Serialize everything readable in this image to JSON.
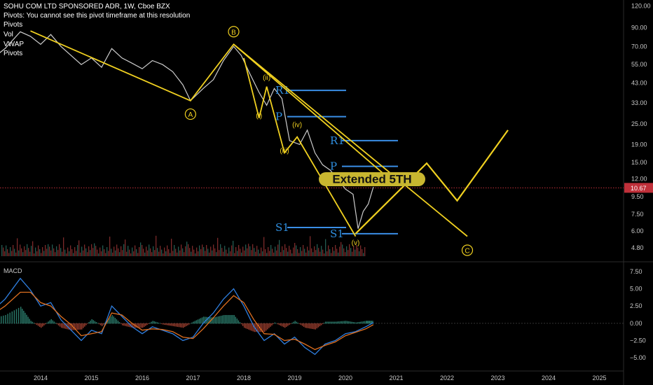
{
  "header": {
    "title": "SOHU COM LTD SPONSORED ADR, 1W, Cboe BZX",
    "message": "Pivots: You cannot see this pivot timeframe at this resolution",
    "indicators": [
      "Pivots",
      "Vol",
      "VWAP",
      "Pivots"
    ]
  },
  "macd_label": "MACD",
  "price_label": "10.67",
  "chart_data": [
    {
      "type": "line",
      "scale": "log",
      "x_axis": [
        "2014",
        "2015",
        "2016",
        "2017",
        "2018",
        "2019",
        "2020",
        "2021",
        "2022",
        "2023",
        "2024",
        "2025"
      ],
      "y_ticks": [
        "120.00",
        "90.00",
        "70.00",
        "55.00",
        "43.00",
        "33.00",
        "25.00",
        "19.00",
        "15.00",
        "12.00",
        "10.67",
        "9.50",
        "7.50",
        "6.00",
        "4.80"
      ],
      "ylim": [
        4.3,
        125
      ],
      "current_price": 10.67,
      "series": [
        {
          "color": "#cccccc",
          "x": [
            2013.0,
            2013.3,
            2013.6,
            2013.8,
            2014.0,
            2014.2,
            2014.4,
            2014.6,
            2014.8,
            2015.0,
            2015.2,
            2015.4,
            2015.6,
            2015.8,
            2016.0,
            2016.2,
            2016.4,
            2016.6,
            2016.8,
            2016.95,
            2017.2,
            2017.4,
            2017.6,
            2017.8,
            2017.95,
            2018.1,
            2018.3,
            2018.45,
            2018.6,
            2018.75,
            2018.9,
            2019.1,
            2019.25,
            2019.4,
            2019.55,
            2019.7,
            2019.85,
            2020.0,
            2020.15,
            2020.25,
            2020.35,
            2020.45,
            2020.55
          ],
          "values": [
            58,
            68,
            85,
            80,
            72,
            82,
            70,
            62,
            55,
            60,
            53,
            68,
            60,
            56,
            52,
            58,
            55,
            50,
            42,
            34,
            40,
            45,
            58,
            70,
            62,
            50,
            38,
            32,
            40,
            35,
            20,
            19,
            23,
            17,
            14.5,
            13.5,
            12,
            10.5,
            9.8,
            6.2,
            7.8,
            8.6,
            10.8
          ]
        }
      ],
      "annotations": {
        "elliott_points": [
          {
            "label": "B",
            "x": 2017.8,
            "y": 72
          },
          {
            "label": "A",
            "x": 2016.95,
            "y": 33
          },
          {
            "label": "C",
            "x": 2022.4,
            "y": 5.4
          }
        ],
        "wave_labels": [
          {
            "label": "(i)",
            "x": 2018.3,
            "y": 27
          },
          {
            "label": "(ii)",
            "x": 2018.45,
            "y": 45
          },
          {
            "label": "(iii)",
            "x": 2018.8,
            "y": 17
          },
          {
            "label": "(iv)",
            "x": 2019.05,
            "y": 24
          },
          {
            "label": "(v)",
            "x": 2020.2,
            "y": 5.0
          }
        ],
        "pivot_levels": [
          {
            "label": "R1",
            "y": 39
          },
          {
            "label": "P",
            "y": 27.5
          },
          {
            "label": "R1",
            "y": 20
          },
          {
            "label": "P",
            "y": 14.2
          },
          {
            "label": "S1",
            "y": 6.3
          },
          {
            "label": "S1",
            "y": 5.8
          }
        ],
        "callout": "Extended 5TH"
      }
    },
    {
      "type": "line",
      "title": "MACD",
      "y_ticks": [
        "7.50",
        "5.00",
        "2.50",
        "0.00",
        "−2.50",
        "−5.00"
      ],
      "ylim": [
        -6.5,
        8.5
      ],
      "x": [
        2013.0,
        2013.3,
        2013.6,
        2013.8,
        2014.0,
        2014.2,
        2014.4,
        2014.6,
        2014.8,
        2015.0,
        2015.2,
        2015.4,
        2015.6,
        2015.8,
        2016.0,
        2016.2,
        2016.4,
        2016.6,
        2016.8,
        2017.0,
        2017.2,
        2017.4,
        2017.6,
        2017.8,
        2018.0,
        2018.2,
        2018.4,
        2018.6,
        2018.8,
        2019.0,
        2019.2,
        2019.4,
        2019.6,
        2019.8,
        2020.0,
        2020.2,
        2020.4,
        2020.55
      ],
      "series": [
        {
          "color": "#2f7fe0",
          "values": [
            1.5,
            3.5,
            6.5,
            4.8,
            2.5,
            3.0,
            0.5,
            -1.0,
            -2.5,
            -1.0,
            -1.5,
            2.5,
            1.0,
            -0.5,
            -1.5,
            -0.5,
            -1.0,
            -1.5,
            -2.5,
            -2.0,
            0.0,
            1.5,
            3.5,
            5.0,
            2.5,
            -0.5,
            -2.5,
            -1.5,
            -3.0,
            -2.0,
            -3.5,
            -4.5,
            -3.0,
            -2.5,
            -1.5,
            -1.2,
            -0.5,
            0.1
          ]
        },
        {
          "color": "#e07020",
          "values": [
            1.0,
            2.5,
            4.5,
            4.5,
            3.0,
            2.5,
            1.0,
            -0.2,
            -1.8,
            -1.5,
            -1.2,
            1.5,
            1.2,
            0.0,
            -1.0,
            -0.8,
            -0.9,
            -1.2,
            -2.0,
            -2.2,
            -0.8,
            0.8,
            2.5,
            4.0,
            3.0,
            0.5,
            -1.5,
            -1.6,
            -2.5,
            -2.3,
            -3.0,
            -3.8,
            -3.2,
            -2.7,
            -1.8,
            -1.3,
            -0.8,
            -0.2
          ]
        }
      ]
    }
  ]
}
